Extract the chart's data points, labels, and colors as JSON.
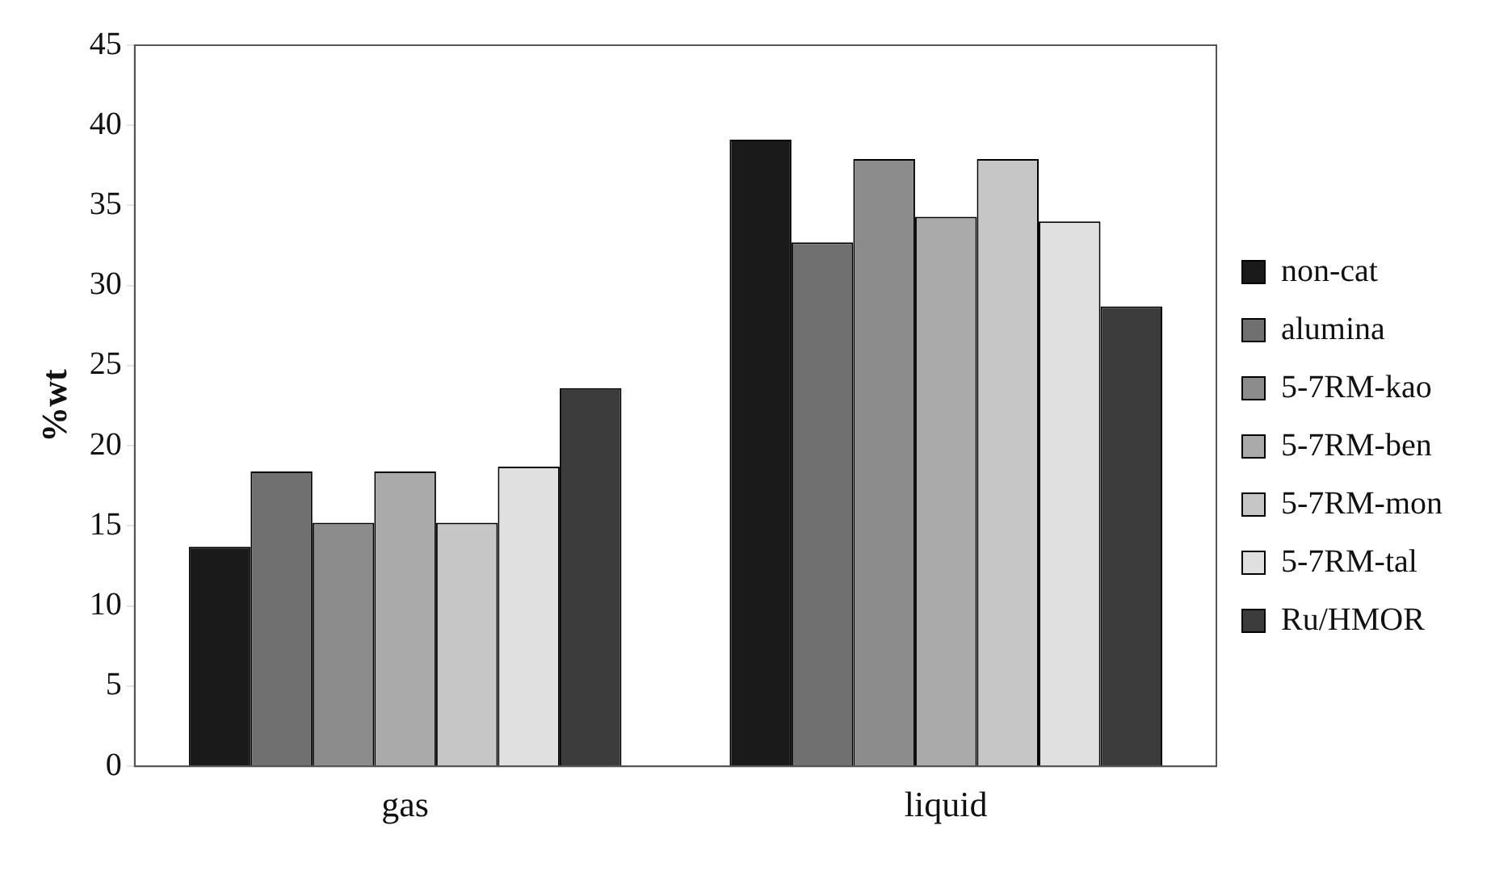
{
  "chart_data": {
    "type": "bar",
    "ylabel": "%wt",
    "categories": [
      "gas",
      "liquid"
    ],
    "series": [
      {
        "name": "non-cat",
        "color": "#1a1a1a",
        "values": [
          13.7,
          39.1
        ]
      },
      {
        "name": "alumina",
        "color": "#707070",
        "values": [
          18.4,
          32.7
        ]
      },
      {
        "name": "5-7RM-kao",
        "color": "#8c8c8c",
        "values": [
          15.2,
          37.9
        ]
      },
      {
        "name": "5-7RM-ben",
        "color": "#aaaaaa",
        "values": [
          18.4,
          34.3
        ]
      },
      {
        "name": "5-7RM-mon",
        "color": "#c6c6c6",
        "values": [
          15.2,
          37.9
        ]
      },
      {
        "name": "5-7RM-tal",
        "color": "#e0e0e0",
        "values": [
          18.7,
          34.0
        ]
      },
      {
        "name": "Ru/HMOR",
        "color": "#3c3c3c",
        "values": [
          23.6,
          28.7
        ]
      }
    ],
    "ylim": [
      0,
      45
    ],
    "yticks": [
      0,
      5,
      10,
      15,
      20,
      25,
      30,
      35,
      40,
      45
    ],
    "grid": false,
    "legend": "right"
  }
}
